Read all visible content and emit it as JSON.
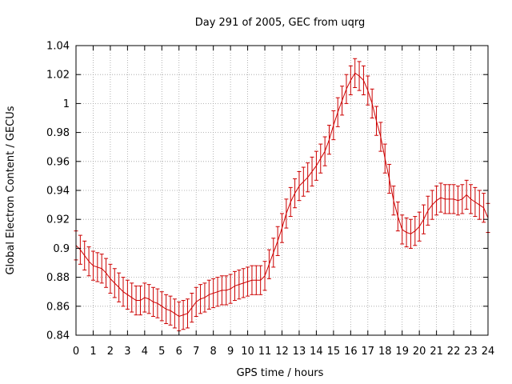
{
  "chart_data": {
    "type": "line",
    "title": "Day 291 of 2005, GEC from uqrg",
    "xlabel": "GPS time / hours",
    "ylabel": "Global Electron Content / GECUs",
    "xlim": [
      0,
      24
    ],
    "ylim": [
      0.84,
      1.04
    ],
    "xticks": [
      0,
      1,
      2,
      3,
      4,
      5,
      6,
      7,
      8,
      9,
      10,
      11,
      12,
      13,
      14,
      15,
      16,
      17,
      18,
      19,
      20,
      21,
      22,
      23,
      24
    ],
    "yticks": [
      0.84,
      0.86,
      0.88,
      0.9,
      0.92,
      0.94,
      0.96,
      0.98,
      1,
      1.02,
      1.04
    ],
    "ytick_labels": [
      "0.84",
      "0.86",
      "0.88",
      "0.9",
      "0.92",
      "0.94",
      "0.96",
      "0.98",
      "1",
      "1.02",
      "1.04"
    ],
    "grid": true,
    "series_color": "#cc0000",
    "error_bar_half_width": 0.01,
    "x": [
      0,
      0.25,
      0.5,
      0.75,
      1,
      1.25,
      1.5,
      1.75,
      2,
      2.25,
      2.5,
      2.75,
      3,
      3.25,
      3.5,
      3.75,
      4,
      4.25,
      4.5,
      4.75,
      5,
      5.25,
      5.5,
      5.75,
      6,
      6.25,
      6.5,
      6.75,
      7,
      7.25,
      7.5,
      7.75,
      8,
      8.25,
      8.5,
      8.75,
      9,
      9.25,
      9.5,
      9.75,
      10,
      10.25,
      10.5,
      10.75,
      11,
      11.25,
      11.5,
      11.75,
      12,
      12.25,
      12.5,
      12.75,
      13,
      13.25,
      13.5,
      13.75,
      14,
      14.25,
      14.5,
      14.75,
      15,
      15.25,
      15.5,
      15.75,
      16,
      16.25,
      16.5,
      16.75,
      17,
      17.25,
      17.5,
      17.75,
      18,
      18.25,
      18.5,
      18.75,
      19,
      19.25,
      19.5,
      19.75,
      20,
      20.25,
      20.5,
      20.75,
      21,
      21.25,
      21.5,
      21.75,
      22,
      22.25,
      22.5,
      22.75,
      23,
      23.25,
      23.5,
      23.75,
      24
    ],
    "y": [
      0.902,
      0.899,
      0.895,
      0.891,
      0.888,
      0.887,
      0.886,
      0.883,
      0.879,
      0.876,
      0.873,
      0.87,
      0.868,
      0.866,
      0.864,
      0.864,
      0.866,
      0.865,
      0.863,
      0.862,
      0.86,
      0.858,
      0.857,
      0.855,
      0.853,
      0.854,
      0.855,
      0.859,
      0.863,
      0.865,
      0.866,
      0.868,
      0.869,
      0.87,
      0.871,
      0.871,
      0.872,
      0.874,
      0.875,
      0.876,
      0.877,
      0.878,
      0.878,
      0.878,
      0.881,
      0.889,
      0.897,
      0.905,
      0.914,
      0.924,
      0.932,
      0.938,
      0.943,
      0.946,
      0.949,
      0.953,
      0.957,
      0.962,
      0.967,
      0.975,
      0.985,
      0.994,
      1.002,
      1.01,
      1.016,
      1.021,
      1.019,
      1.016,
      1.009,
      1.0,
      0.988,
      0.977,
      0.962,
      0.948,
      0.933,
      0.922,
      0.913,
      0.911,
      0.91,
      0.912,
      0.915,
      0.92,
      0.926,
      0.93,
      0.933,
      0.935,
      0.934,
      0.934,
      0.934,
      0.933,
      0.934,
      0.937,
      0.934,
      0.932,
      0.93,
      0.928,
      0.921
    ]
  }
}
